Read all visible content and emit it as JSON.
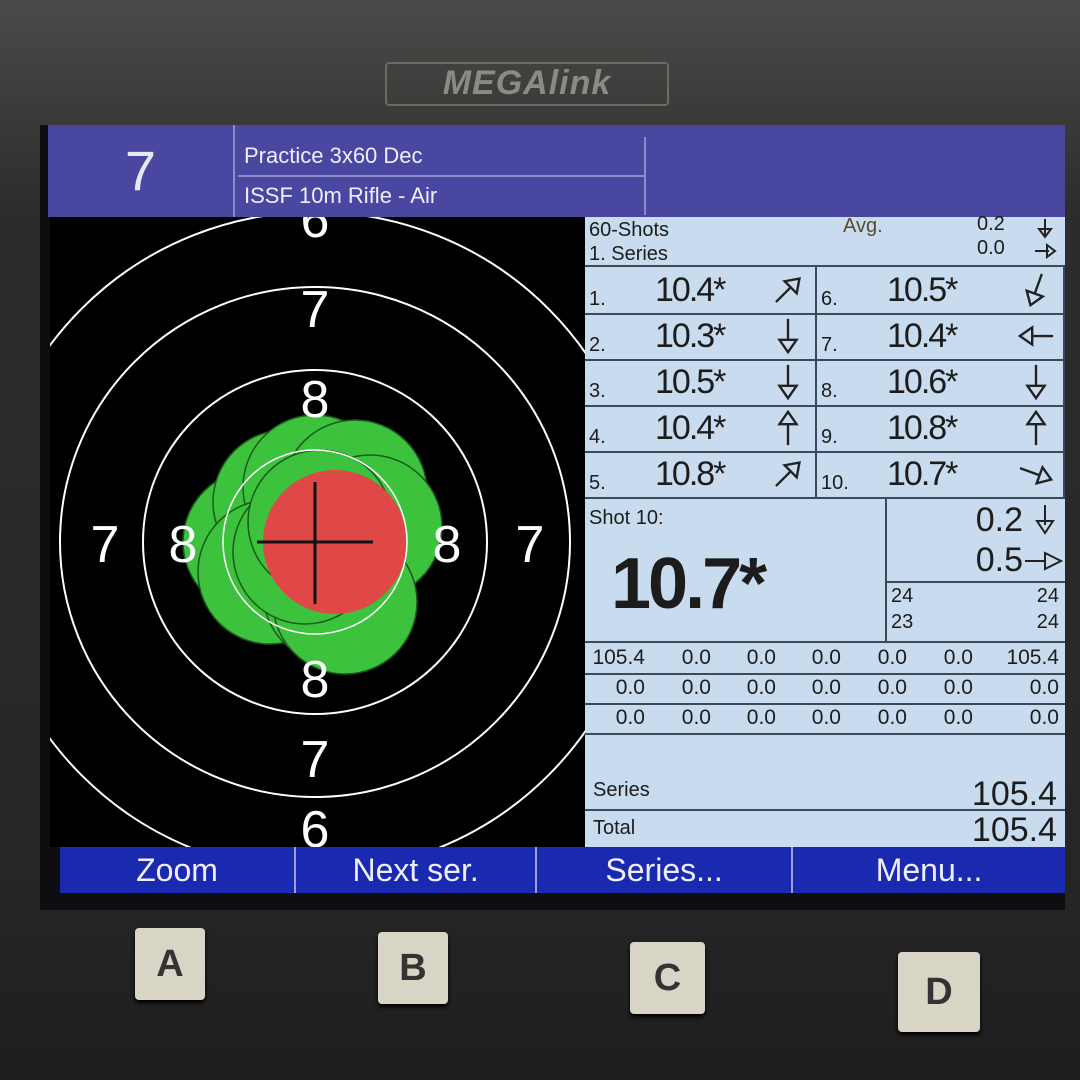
{
  "device": {
    "brand": "MEGAlink",
    "hardware_buttons": [
      "A",
      "B",
      "C",
      "D"
    ]
  },
  "header": {
    "shooter_number": "7",
    "program": "Practice 3x60 Dec",
    "discipline": "ISSF 10m Rifle  - Air"
  },
  "target": {
    "ring_labels": {
      "top": [
        "6",
        "7",
        "8"
      ],
      "bottom": [
        "8",
        "7",
        "6"
      ],
      "left": [
        "7",
        "8"
      ],
      "right": [
        "8",
        "7"
      ]
    },
    "colors": {
      "shot": "#3cc23c",
      "last_shot": "#e04848"
    }
  },
  "panel": {
    "shots_label": "60-Shots",
    "series_label": "1. Series",
    "avg_label": "Avg.",
    "avg_vertical": "0.2",
    "avg_horizontal": "0.0",
    "shots": [
      {
        "n": "1.",
        "score": "10.4*",
        "dir": "up-right"
      },
      {
        "n": "2.",
        "score": "10.3*",
        "dir": "down"
      },
      {
        "n": "3.",
        "score": "10.5*",
        "dir": "down"
      },
      {
        "n": "4.",
        "score": "10.4*",
        "dir": "up"
      },
      {
        "n": "5.",
        "score": "10.8*",
        "dir": "up-right"
      },
      {
        "n": "6.",
        "score": "10.5*",
        "dir": "down-left"
      },
      {
        "n": "7.",
        "score": "10.4*",
        "dir": "left"
      },
      {
        "n": "8.",
        "score": "10.6*",
        "dir": "down"
      },
      {
        "n": "9.",
        "score": "10.8*",
        "dir": "up"
      },
      {
        "n": "10.",
        "score": "10.7*",
        "dir": "right-down"
      }
    ],
    "last_shot": {
      "label": "Shot 10:",
      "score": "10.7*",
      "vertical": "0.2",
      "horizontal": "0.5"
    },
    "counts": {
      "a": "24",
      "b": "24",
      "c": "23",
      "d": "24"
    },
    "series_grid": [
      [
        "105.4",
        "0.0",
        "0.0",
        "0.0",
        "0.0",
        "0.0",
        "105.4"
      ],
      [
        "0.0",
        "0.0",
        "0.0",
        "0.0",
        "0.0",
        "0.0",
        "0.0"
      ],
      [
        "0.0",
        "0.0",
        "0.0",
        "0.0",
        "0.0",
        "0.0",
        "0.0"
      ]
    ],
    "series_total_label": "Series",
    "series_total": "105.4",
    "total_label": "Total",
    "total": "105.4"
  },
  "footer": {
    "buttons": [
      "Zoom",
      "Next ser.",
      "Series...",
      "Menu..."
    ]
  }
}
